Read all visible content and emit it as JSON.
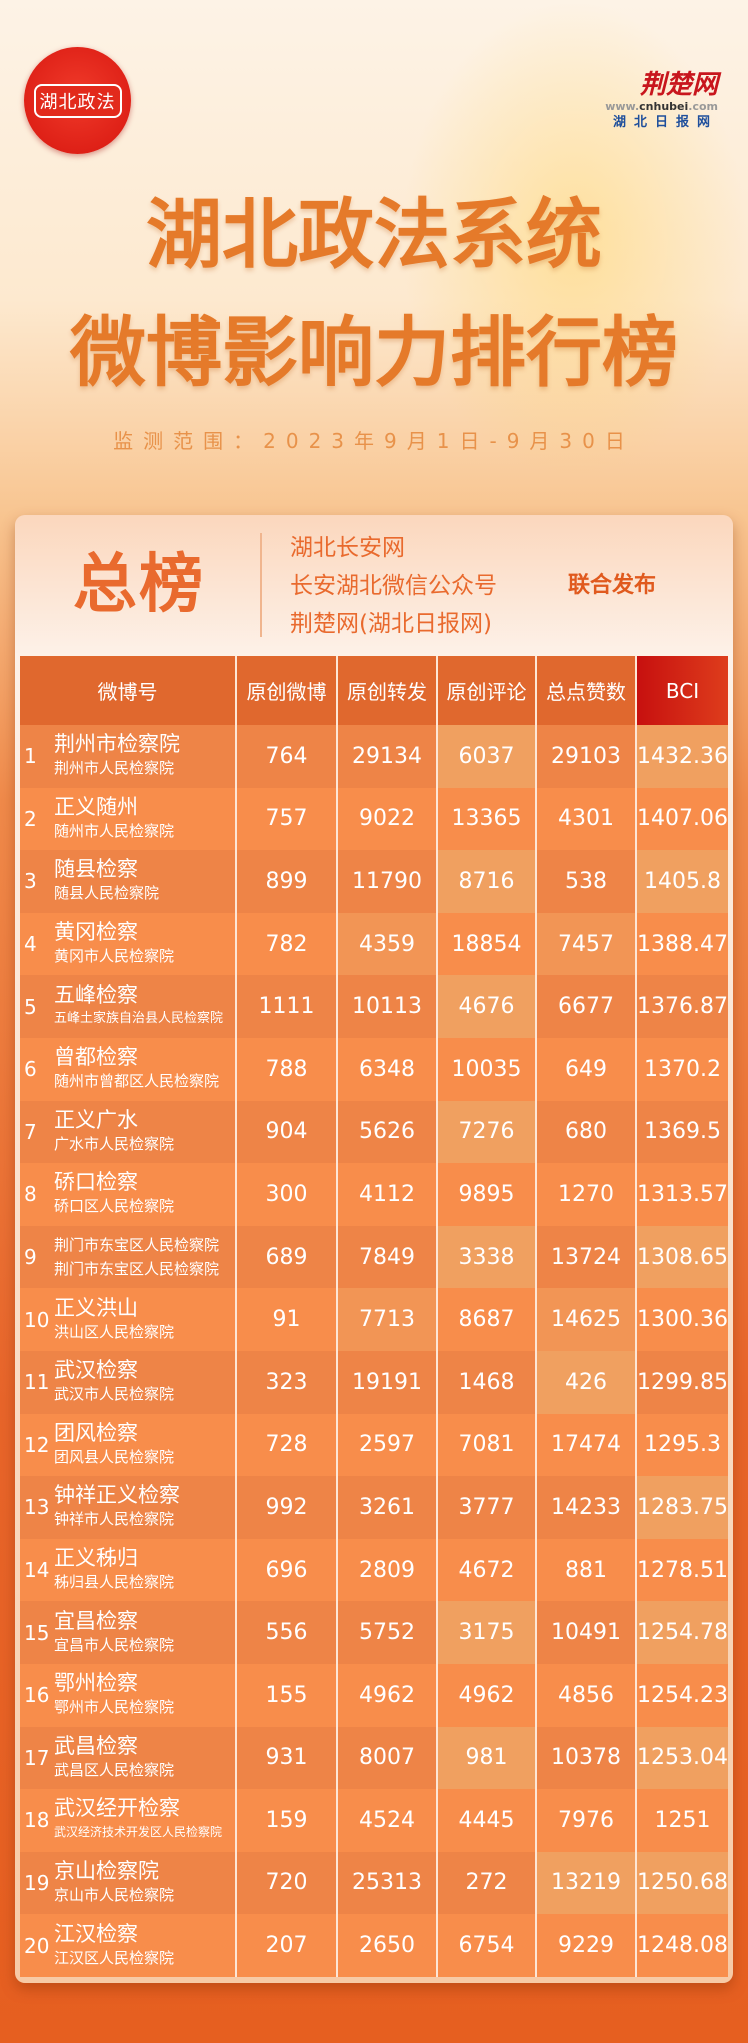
{
  "logos": {
    "seal_text": "湖北政法",
    "brand": "荆楚网",
    "brand_url_prefix": "www.",
    "brand_url_main": "cnhubei",
    "brand_url_suffix": ".com",
    "brand_sub": "湖北日报网"
  },
  "title_line1": "湖北政法系统",
  "title_line2": "微博影响力排行榜",
  "monitor_range": "监测范围：2023年9月1日-9月30日",
  "board": {
    "label": "总榜",
    "publishers": [
      "湖北长安网",
      "长安湖北微信公众号",
      "荆楚网(湖北日报网)"
    ],
    "joint_label": "联合发布"
  },
  "table": {
    "headers": [
      "微博号",
      "原创微博",
      "原创转发",
      "原创评论",
      "总点赞数",
      "BCI"
    ],
    "rows": [
      {
        "rank": "1",
        "account": "荆州市检察院",
        "org": "荆州市人民检察院",
        "posts": "764",
        "reposts": "29134",
        "comments": "6037",
        "likes": "29103",
        "bci": "1432.36"
      },
      {
        "rank": "2",
        "account": "正义随州",
        "org": "随州市人民检察院",
        "posts": "757",
        "reposts": "9022",
        "comments": "13365",
        "likes": "4301",
        "bci": "1407.06"
      },
      {
        "rank": "3",
        "account": "随县检察",
        "org": "随县人民检察院",
        "posts": "899",
        "reposts": "11790",
        "comments": "8716",
        "likes": "538",
        "bci": "1405.8"
      },
      {
        "rank": "4",
        "account": "黄冈检察",
        "org": "黄冈市人民检察院",
        "posts": "782",
        "reposts": "4359",
        "comments": "18854",
        "likes": "7457",
        "bci": "1388.47"
      },
      {
        "rank": "5",
        "account": "五峰检察",
        "org": "五峰土家族自治县人民检察院",
        "posts": "1111",
        "reposts": "10113",
        "comments": "4676",
        "likes": "6677",
        "bci": "1376.87"
      },
      {
        "rank": "6",
        "account": "曾都检察",
        "org": "随州市曾都区人民检察院",
        "posts": "788",
        "reposts": "6348",
        "comments": "10035",
        "likes": "649",
        "bci": "1370.2"
      },
      {
        "rank": "7",
        "account": "正义广水",
        "org": "广水市人民检察院",
        "posts": "904",
        "reposts": "5626",
        "comments": "7276",
        "likes": "680",
        "bci": "1369.5"
      },
      {
        "rank": "8",
        "account": "硚口检察",
        "org": "硚口区人民检察院",
        "posts": "300",
        "reposts": "4112",
        "comments": "9895",
        "likes": "1270",
        "bci": "1313.57"
      },
      {
        "rank": "9",
        "account": "荆门市东宝区人民检察院",
        "org": "荆门市东宝区人民检察院",
        "posts": "689",
        "reposts": "7849",
        "comments": "3338",
        "likes": "13724",
        "bci": "1308.65"
      },
      {
        "rank": "10",
        "account": "正义洪山",
        "org": "洪山区人民检察院",
        "posts": "91",
        "reposts": "7713",
        "comments": "8687",
        "likes": "14625",
        "bci": "1300.36"
      },
      {
        "rank": "11",
        "account": "武汉检察",
        "org": "武汉市人民检察院",
        "posts": "323",
        "reposts": "19191",
        "comments": "1468",
        "likes": "426",
        "bci": "1299.85"
      },
      {
        "rank": "12",
        "account": "团风检察",
        "org": "团风县人民检察院",
        "posts": "728",
        "reposts": "2597",
        "comments": "7081",
        "likes": "17474",
        "bci": "1295.3"
      },
      {
        "rank": "13",
        "account": "钟祥正义检察",
        "org": "钟祥市人民检察院",
        "posts": "992",
        "reposts": "3261",
        "comments": "3777",
        "likes": "14233",
        "bci": "1283.75"
      },
      {
        "rank": "14",
        "account": "正义秭归",
        "org": "秭归县人民检察院",
        "posts": "696",
        "reposts": "2809",
        "comments": "4672",
        "likes": "881",
        "bci": "1278.51"
      },
      {
        "rank": "15",
        "account": "宜昌检察",
        "org": "宜昌市人民检察院",
        "posts": "556",
        "reposts": "5752",
        "comments": "3175",
        "likes": "10491",
        "bci": "1254.78"
      },
      {
        "rank": "16",
        "account": "鄂州检察",
        "org": "鄂州市人民检察院",
        "posts": "155",
        "reposts": "4962",
        "comments": "4962",
        "likes": "4856",
        "bci": "1254.23"
      },
      {
        "rank": "17",
        "account": "武昌检察",
        "org": "武昌区人民检察院",
        "posts": "931",
        "reposts": "8007",
        "comments": "981",
        "likes": "10378",
        "bci": "1253.04"
      },
      {
        "rank": "18",
        "account": "武汉经开检察",
        "org": "武汉经济技术开发区人民检察院",
        "posts": "159",
        "reposts": "4524",
        "comments": "4445",
        "likes": "7976",
        "bci": "1251"
      },
      {
        "rank": "19",
        "account": "京山检察院",
        "org": "京山市人民检察院",
        "posts": "720",
        "reposts": "25313",
        "comments": "272",
        "likes": "13219",
        "bci": "1250.68"
      },
      {
        "rank": "20",
        "account": "江汉检察",
        "org": "江汉区人民检察院",
        "posts": "207",
        "reposts": "2650",
        "comments": "6754",
        "likes": "9229",
        "bci": "1248.08"
      }
    ]
  },
  "colors": {
    "accent": "#e96a2e",
    "header_bg": "#e0682e",
    "bci_header": "#c7100f",
    "page_bottom": "#e65f20"
  }
}
